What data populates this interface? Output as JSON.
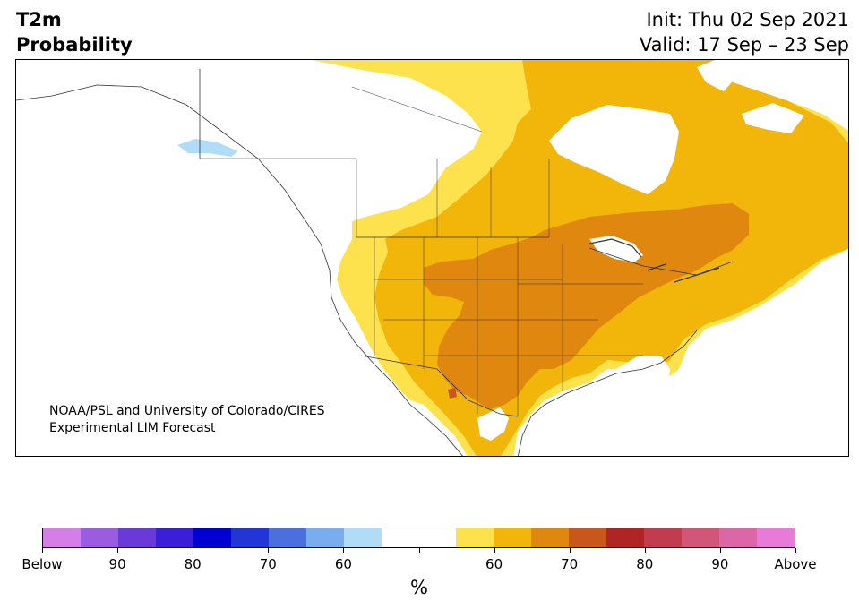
{
  "title": {
    "left_line1": "T2m",
    "left_line2": "Probability",
    "right_line1": "Init: Thu 02 Sep 2021",
    "right_line2": "Valid: 17 Sep – 23 Sep"
  },
  "credit": {
    "line1": "NOAA/PSL and University of Colorado/CIRES",
    "line2": "Experimental LIM Forecast"
  },
  "colorbar": {
    "unit": "%",
    "colors": [
      "#d57ee8",
      "#9b5de0",
      "#6a3ad8",
      "#3b1fd6",
      "#0000d0",
      "#2236d8",
      "#4a70e0",
      "#78aef0",
      "#b0dcf8",
      "#ffffff",
      "#ffffff",
      "#fde24e",
      "#f2b50a",
      "#df870f",
      "#c9561b",
      "#b02424",
      "#c23c50",
      "#d1567a",
      "#dc66a8",
      "#e87ad8"
    ],
    "labels": [
      "Below",
      "90",
      "80",
      "70",
      "60",
      "",
      "60",
      "70",
      "80",
      "90",
      "Above"
    ]
  },
  "legend_colors": {
    "prob_50_60_above": "#fde24e",
    "prob_60_70_above": "#f2b50a",
    "prob_70_80_above": "#df870f",
    "prob_80_90_above": "#c9561b",
    "prob_60_70_below": "#b0dcf8"
  }
}
